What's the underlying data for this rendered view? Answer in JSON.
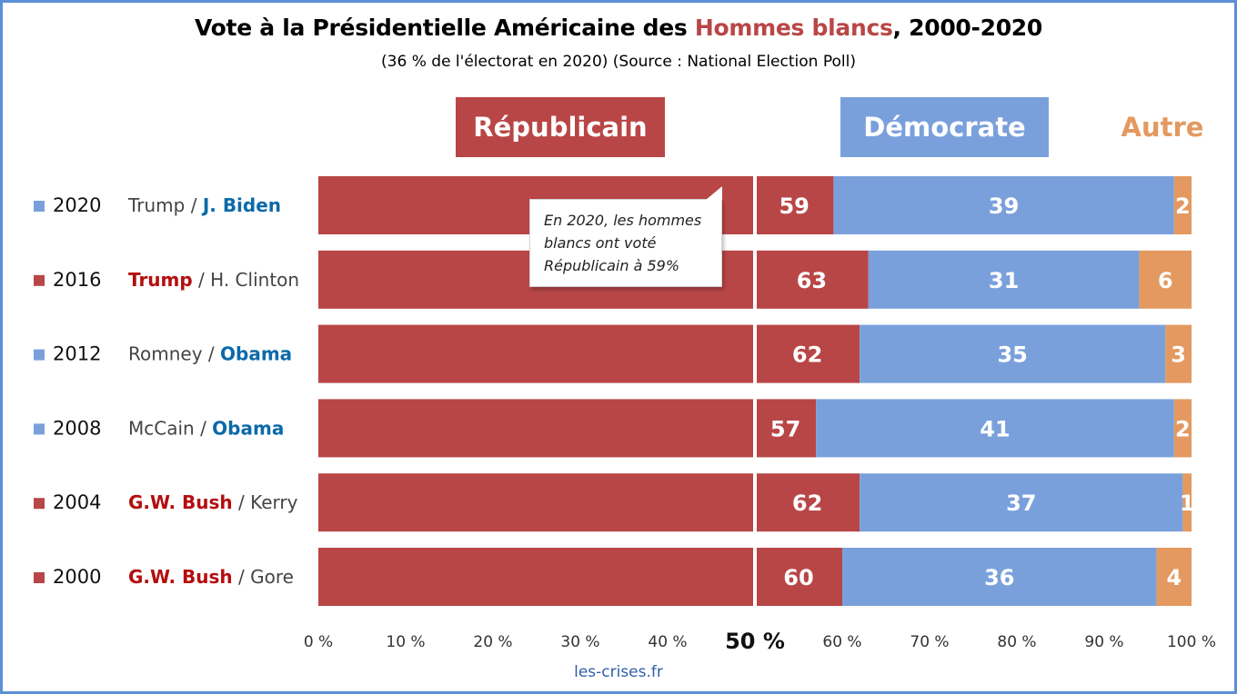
{
  "title": {
    "prefix": "Vote à la Présidentielle Américaine des ",
    "highlight": "Hommes blancs",
    "suffix": ", 2000-2020"
  },
  "subtitle": "(36 % de l'électorat en 2020) (Source : National Election Poll)",
  "headers": {
    "republican": "Républicain",
    "democrat": "Démocrate",
    "other": "Autre"
  },
  "callout": "En 2020, les hommes blancs ont voté Républicain à 59%",
  "source": "les-crises.fr",
  "colors": {
    "republican": "#b94646",
    "democrat": "#7aa0dc",
    "other": "#e3995f",
    "winner_rep": "#b50d0d",
    "winner_dem": "#0b6aa8",
    "loser": "#444444",
    "frame": "#5b8fd6"
  },
  "chart_data": {
    "type": "bar",
    "orientation": "horizontal",
    "stacked": true,
    "categories": [
      "2020",
      "2016",
      "2012",
      "2008",
      "2004",
      "2000"
    ],
    "candidates": [
      {
        "year": "2020",
        "rep": "Trump",
        "dem": "J. Biden",
        "winner": "dem"
      },
      {
        "year": "2016",
        "rep": "Trump",
        "dem": "H. Clinton",
        "winner": "rep"
      },
      {
        "year": "2012",
        "rep": "Romney",
        "dem": "Obama",
        "winner": "dem"
      },
      {
        "year": "2008",
        "rep": "McCain",
        "dem": "Obama",
        "winner": "dem"
      },
      {
        "year": "2004",
        "rep": "G.W. Bush",
        "dem": "Kerry",
        "winner": "rep"
      },
      {
        "year": "2000",
        "rep": "G.W. Bush",
        "dem": "Gore",
        "winner": "rep"
      }
    ],
    "series": [
      {
        "name": "Républicain",
        "values": [
          59,
          63,
          62,
          57,
          62,
          60
        ]
      },
      {
        "name": "Démocrate",
        "values": [
          39,
          31,
          35,
          41,
          37,
          36
        ]
      },
      {
        "name": "Autre",
        "values": [
          2,
          6,
          3,
          2,
          1,
          4
        ]
      }
    ],
    "xlim": [
      0,
      100
    ],
    "xticks": [
      "0 %",
      "10 %",
      "20 %",
      "30 %",
      "40 %",
      "50 %",
      "60 %",
      "70 %",
      "80 %",
      "90 %",
      "100 %"
    ],
    "reference_line": 50,
    "grid": false
  }
}
